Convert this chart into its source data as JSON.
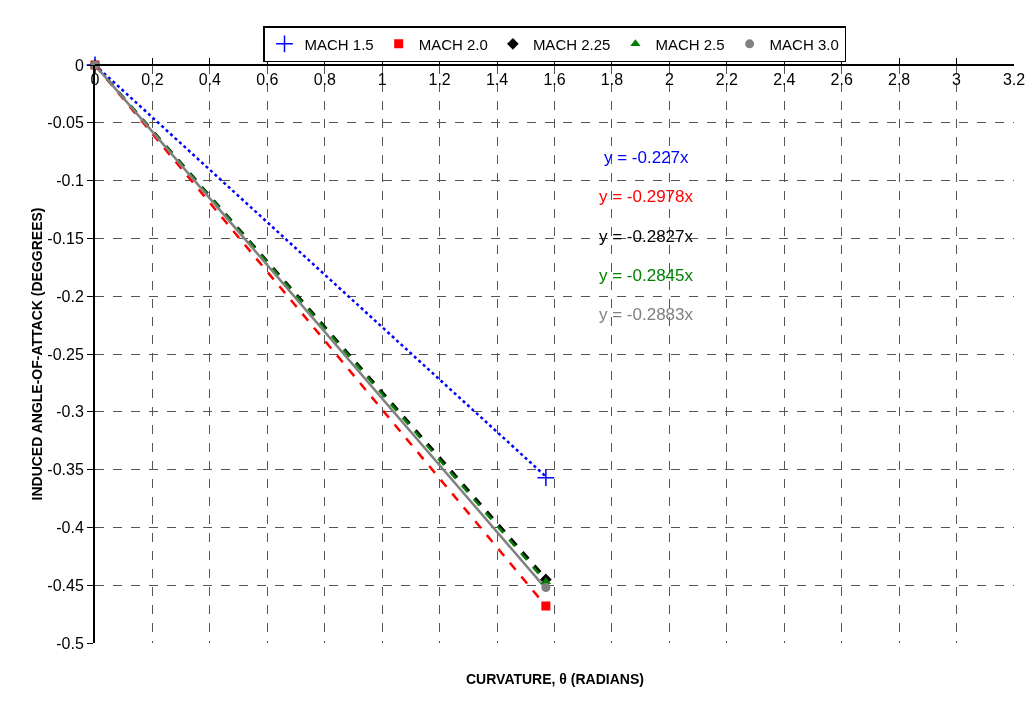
{
  "chart_data": {
    "type": "scatter",
    "xlabel": "CURVATURE, θ (RADIANS)",
    "ylabel": "INDUCED ANGLE-OF-ATTACK (DEGGREES)",
    "xlim": [
      0,
      3.2
    ],
    "xticks": [
      0,
      0.2,
      0.4,
      0.6,
      0.8,
      1,
      1.2,
      1.4,
      1.6,
      1.8,
      2,
      2.2,
      2.4,
      2.6,
      2.8,
      3,
      3.2
    ],
    "ylim": [
      -0.5,
      0
    ],
    "yticks": [
      -0.5,
      -0.45,
      -0.4,
      -0.35,
      -0.3,
      -0.25,
      -0.2,
      -0.15,
      -0.1,
      -0.05,
      0
    ],
    "grid": true,
    "legend": "top",
    "x": [
      0,
      1.57
    ],
    "series": [
      {
        "name": "MACH 1.5",
        "type": "scatter",
        "marker": "cross",
        "color": "#0000ff",
        "values": [
          0,
          -0.357
        ]
      },
      {
        "name": "MACH 2.0",
        "type": "scatter",
        "marker": "square",
        "color": "#ff0000",
        "values": [
          0,
          -0.468
        ]
      },
      {
        "name": "MACH 2.25",
        "type": "scatter",
        "marker": "diamond",
        "color": "#000000",
        "values": [
          0,
          -0.445
        ]
      },
      {
        "name": "MACH 2.5",
        "type": "scatter",
        "marker": "triangle",
        "color": "#008000",
        "values": [
          0,
          -0.447
        ]
      },
      {
        "name": "MACH 3.0",
        "type": "scatter",
        "marker": "circle",
        "color": "#808080",
        "values": [
          0,
          -0.452
        ]
      },
      {
        "type": "line",
        "line_style": "dotted",
        "color": "#0000ff",
        "values": [
          0,
          -0.356
        ]
      },
      {
        "type": "line",
        "line_style": "dashed",
        "color": "#ff0000",
        "values": [
          0,
          -0.468
        ]
      },
      {
        "type": "line",
        "line_style": "dashed",
        "color": "#000000",
        "values": [
          0,
          -0.444
        ]
      },
      {
        "type": "line",
        "line_style": "dashed",
        "color": "#008000",
        "values": [
          0,
          -0.447
        ]
      },
      {
        "type": "line",
        "line_style": "solid",
        "color": "#808080",
        "values": [
          0,
          -0.453
        ]
      }
    ],
    "annotations": [
      "y = -0.227x",
      "y = -0.2978x",
      "y = -0.2827x",
      "y = -0.2845x",
      "y = -0.2883x"
    ]
  }
}
